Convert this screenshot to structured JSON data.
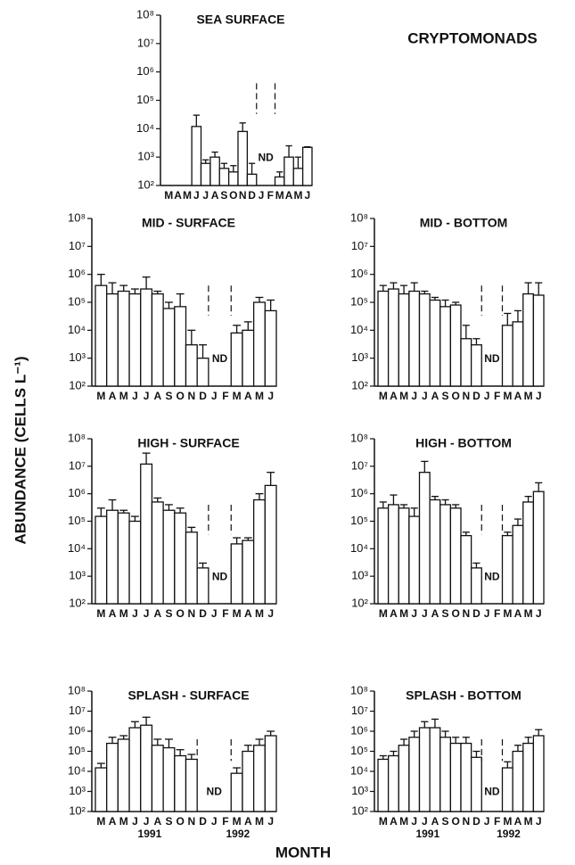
{
  "figure": {
    "title": "CRYPTOMONADS",
    "ylabel": "ABUNDANCE (CELLS L⁻¹)",
    "xlabel": "MONTH"
  },
  "chart_data": [
    {
      "type": "bar",
      "title": "SEA SURFACE",
      "log_scale": true,
      "color": "#ffffff",
      "annotation": "ND",
      "categories": [
        "M",
        "A",
        "M",
        "J",
        "J",
        "A",
        "S",
        "O",
        "N",
        "D",
        "J",
        "F",
        "M",
        "A",
        "M",
        "J"
      ],
      "values": [
        null,
        null,
        null,
        12000,
        600,
        1000,
        400,
        300,
        8000,
        250,
        null,
        null,
        200,
        1000,
        400,
        2200
      ],
      "errors": [
        null,
        null,
        null,
        30000,
        800,
        1500,
        600,
        500,
        16000,
        600,
        null,
        null,
        300,
        2500,
        1000,
        2300
      ],
      "ylim": [
        100,
        100000000
      ],
      "yticks": [
        {
          "value": 100,
          "label": "10²"
        },
        {
          "value": 1000,
          "label": "10³"
        },
        {
          "value": 10000,
          "label": "10⁴"
        },
        {
          "value": 100000,
          "label": "10⁵"
        },
        {
          "value": 1000000,
          "label": "10⁶"
        },
        {
          "value": 10000000,
          "label": "10⁷"
        },
        {
          "value": 100000000,
          "label": "10⁸"
        }
      ]
    },
    {
      "type": "bar",
      "title": "MID - SURFACE",
      "log_scale": true,
      "color": "#ffffff",
      "annotation": "ND",
      "categories": [
        "M",
        "A",
        "M",
        "J",
        "J",
        "A",
        "S",
        "O",
        "N",
        "D",
        "J",
        "F",
        "M",
        "A",
        "M",
        "J"
      ],
      "values": [
        400000,
        200000,
        250000,
        200000,
        300000,
        200000,
        60000,
        70000,
        3000,
        1000,
        null,
        null,
        8000,
        10000,
        100000,
        50000
      ],
      "errors": [
        1000000,
        500000,
        400000,
        300000,
        800000,
        250000,
        100000,
        200000,
        10000,
        3000,
        null,
        null,
        15000,
        20000,
        150000,
        120000
      ],
      "ylim": [
        100,
        100000000
      ],
      "yticks": [
        {
          "value": 100,
          "label": "10²"
        },
        {
          "value": 1000,
          "label": "10³"
        },
        {
          "value": 10000,
          "label": "10⁴"
        },
        {
          "value": 100000,
          "label": "10⁵"
        },
        {
          "value": 1000000,
          "label": "10⁶"
        },
        {
          "value": 10000000,
          "label": "10⁷"
        },
        {
          "value": 100000000,
          "label": "10⁸"
        }
      ]
    },
    {
      "type": "bar",
      "title": "MID - BOTTOM",
      "log_scale": true,
      "color": "#ffffff",
      "annotation": "ND",
      "categories": [
        "M",
        "A",
        "M",
        "J",
        "J",
        "A",
        "S",
        "O",
        "N",
        "D",
        "J",
        "F",
        "M",
        "A",
        "M",
        "J"
      ],
      "values": [
        250000,
        300000,
        200000,
        250000,
        200000,
        120000,
        70000,
        80000,
        5000,
        3000,
        null,
        null,
        15000,
        20000,
        200000,
        180000
      ],
      "errors": [
        400000,
        500000,
        400000,
        500000,
        250000,
        150000,
        120000,
        100000,
        15000,
        5000,
        null,
        null,
        40000,
        50000,
        500000,
        500000
      ],
      "ylim": [
        100,
        100000000
      ],
      "yticks": [
        {
          "value": 100,
          "label": "10²"
        },
        {
          "value": 1000,
          "label": "10³"
        },
        {
          "value": 10000,
          "label": "10⁴"
        },
        {
          "value": 100000,
          "label": "10⁵"
        },
        {
          "value": 1000000,
          "label": "10⁶"
        },
        {
          "value": 10000000,
          "label": "10⁷"
        },
        {
          "value": 100000000,
          "label": "10⁸"
        }
      ]
    },
    {
      "type": "bar",
      "title": "HIGH - SURFACE",
      "log_scale": true,
      "color": "#ffffff",
      "annotation": "ND",
      "categories": [
        "M",
        "A",
        "M",
        "J",
        "J",
        "A",
        "S",
        "O",
        "N",
        "D",
        "J",
        "F",
        "M",
        "A",
        "M",
        "J"
      ],
      "values": [
        150000,
        250000,
        200000,
        100000,
        12000000,
        500000,
        250000,
        200000,
        40000,
        2000,
        null,
        null,
        15000,
        20000,
        600000,
        2000000
      ],
      "errors": [
        300000,
        600000,
        250000,
        150000,
        30000000,
        700000,
        400000,
        300000,
        60000,
        3000,
        null,
        null,
        25000,
        25000,
        1000000,
        6000000
      ],
      "ylim": [
        100,
        100000000
      ],
      "yticks": [
        {
          "value": 100,
          "label": "10²"
        },
        {
          "value": 1000,
          "label": "10³"
        },
        {
          "value": 10000,
          "label": "10⁴"
        },
        {
          "value": 100000,
          "label": "10⁵"
        },
        {
          "value": 1000000,
          "label": "10⁶"
        },
        {
          "value": 10000000,
          "label": "10⁷"
        },
        {
          "value": 100000000,
          "label": "10⁸"
        }
      ]
    },
    {
      "type": "bar",
      "title": "HIGH - BOTTOM",
      "log_scale": true,
      "color": "#ffffff",
      "annotation": "ND",
      "categories": [
        "M",
        "A",
        "M",
        "J",
        "J",
        "A",
        "S",
        "O",
        "N",
        "D",
        "J",
        "F",
        "M",
        "A",
        "M",
        "J"
      ],
      "values": [
        300000,
        400000,
        300000,
        150000,
        6000000,
        600000,
        400000,
        300000,
        30000,
        2000,
        null,
        null,
        30000,
        70000,
        500000,
        1200000
      ],
      "errors": [
        500000,
        900000,
        400000,
        300000,
        15000000,
        800000,
        600000,
        400000,
        40000,
        3000,
        null,
        null,
        40000,
        120000,
        800000,
        2500000
      ],
      "ylim": [
        100,
        100000000
      ],
      "yticks": [
        {
          "value": 100,
          "label": "10²"
        },
        {
          "value": 1000,
          "label": "10³"
        },
        {
          "value": 10000,
          "label": "10⁴"
        },
        {
          "value": 100000,
          "label": "10⁵"
        },
        {
          "value": 1000000,
          "label": "10⁶"
        },
        {
          "value": 10000000,
          "label": "10⁷"
        },
        {
          "value": 100000000,
          "label": "10⁸"
        }
      ]
    },
    {
      "type": "bar",
      "title": "SPLASH - SURFACE",
      "log_scale": true,
      "color": "#ffffff",
      "annotation": "ND",
      "categories": [
        "M",
        "A",
        "M",
        "J",
        "J",
        "A",
        "S",
        "O",
        "N",
        "D",
        "J",
        "F",
        "M",
        "A",
        "M",
        "J"
      ],
      "values": [
        15000,
        250000,
        400000,
        1500000,
        2000000,
        200000,
        150000,
        60000,
        40000,
        null,
        null,
        null,
        8000,
        100000,
        200000,
        600000
      ],
      "errors": [
        25000,
        500000,
        600000,
        3000000,
        5000000,
        400000,
        400000,
        120000,
        70000,
        null,
        null,
        null,
        15000,
        200000,
        400000,
        1000000
      ],
      "years": [
        "1991",
        "1992"
      ],
      "ylim": [
        100,
        100000000
      ],
      "yticks": [
        {
          "value": 100,
          "label": "10²"
        },
        {
          "value": 1000,
          "label": "10³"
        },
        {
          "value": 10000,
          "label": "10⁴"
        },
        {
          "value": 100000,
          "label": "10⁵"
        },
        {
          "value": 1000000,
          "label": "10⁶"
        },
        {
          "value": 10000000,
          "label": "10⁷"
        },
        {
          "value": 100000000,
          "label": "10⁸"
        }
      ]
    },
    {
      "type": "bar",
      "title": "SPLASH - BOTTOM",
      "log_scale": true,
      "color": "#ffffff",
      "annotation": "ND",
      "categories": [
        "M",
        "A",
        "M",
        "J",
        "J",
        "A",
        "S",
        "O",
        "N",
        "D",
        "J",
        "F",
        "M",
        "A",
        "M",
        "J"
      ],
      "values": [
        40000,
        60000,
        200000,
        500000,
        1500000,
        1500000,
        500000,
        250000,
        250000,
        50000,
        null,
        null,
        15000,
        100000,
        250000,
        600000
      ],
      "errors": [
        60000,
        100000,
        400000,
        1000000,
        3000000,
        4000000,
        1000000,
        500000,
        500000,
        100000,
        null,
        null,
        30000,
        200000,
        500000,
        1200000
      ],
      "years": [
        "1991",
        "1992"
      ],
      "ylim": [
        100,
        100000000
      ],
      "yticks": [
        {
          "value": 100,
          "label": "10²"
        },
        {
          "value": 1000,
          "label": "10³"
        },
        {
          "value": 10000,
          "label": "10⁴"
        },
        {
          "value": 100000,
          "label": "10⁵"
        },
        {
          "value": 1000000,
          "label": "10⁶"
        },
        {
          "value": 10000000,
          "label": "10⁷"
        },
        {
          "value": 100000000,
          "label": "10⁸"
        }
      ]
    }
  ]
}
